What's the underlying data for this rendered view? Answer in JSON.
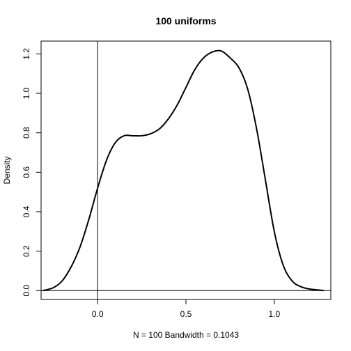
{
  "chart_data": {
    "type": "line",
    "title": "100 uniforms",
    "xlabel": "N = 100   Bandwidth = 0.1043",
    "ylabel": "Density",
    "xlim": [
      -0.32,
      1.32
    ],
    "ylim": [
      -0.045,
      1.265
    ],
    "xticks": [
      0.0,
      0.5,
      1.0
    ],
    "xtick_labels": [
      "0.0",
      "0.5",
      "1.0"
    ],
    "yticks": [
      0.0,
      0.2,
      0.4,
      0.6,
      0.8,
      1.0,
      1.2
    ],
    "ytick_labels": [
      "0.0",
      "0.2",
      "0.4",
      "0.6",
      "0.8",
      "1.0",
      "1.2"
    ],
    "reference_lines": {
      "horizontal_y": 0.0,
      "vertical_x": 0.0
    },
    "grid": false,
    "series": [
      {
        "x": [
          -0.31,
          -0.25,
          -0.2,
          -0.15,
          -0.1,
          -0.05,
          0.0,
          0.05,
          0.1,
          0.15,
          0.2,
          0.25,
          0.3,
          0.35,
          0.4,
          0.45,
          0.5,
          0.55,
          0.6,
          0.65,
          0.7,
          0.75,
          0.8,
          0.85,
          0.9,
          0.95,
          1.0,
          1.05,
          1.1,
          1.15,
          1.2,
          1.25,
          1.28
        ],
        "y": [
          0.0,
          0.015,
          0.05,
          0.12,
          0.22,
          0.36,
          0.52,
          0.66,
          0.75,
          0.785,
          0.785,
          0.785,
          0.795,
          0.82,
          0.87,
          0.94,
          1.03,
          1.12,
          1.18,
          1.21,
          1.215,
          1.18,
          1.13,
          1.02,
          0.82,
          0.56,
          0.3,
          0.13,
          0.05,
          0.02,
          0.008,
          0.003,
          0.0
        ]
      }
    ]
  }
}
